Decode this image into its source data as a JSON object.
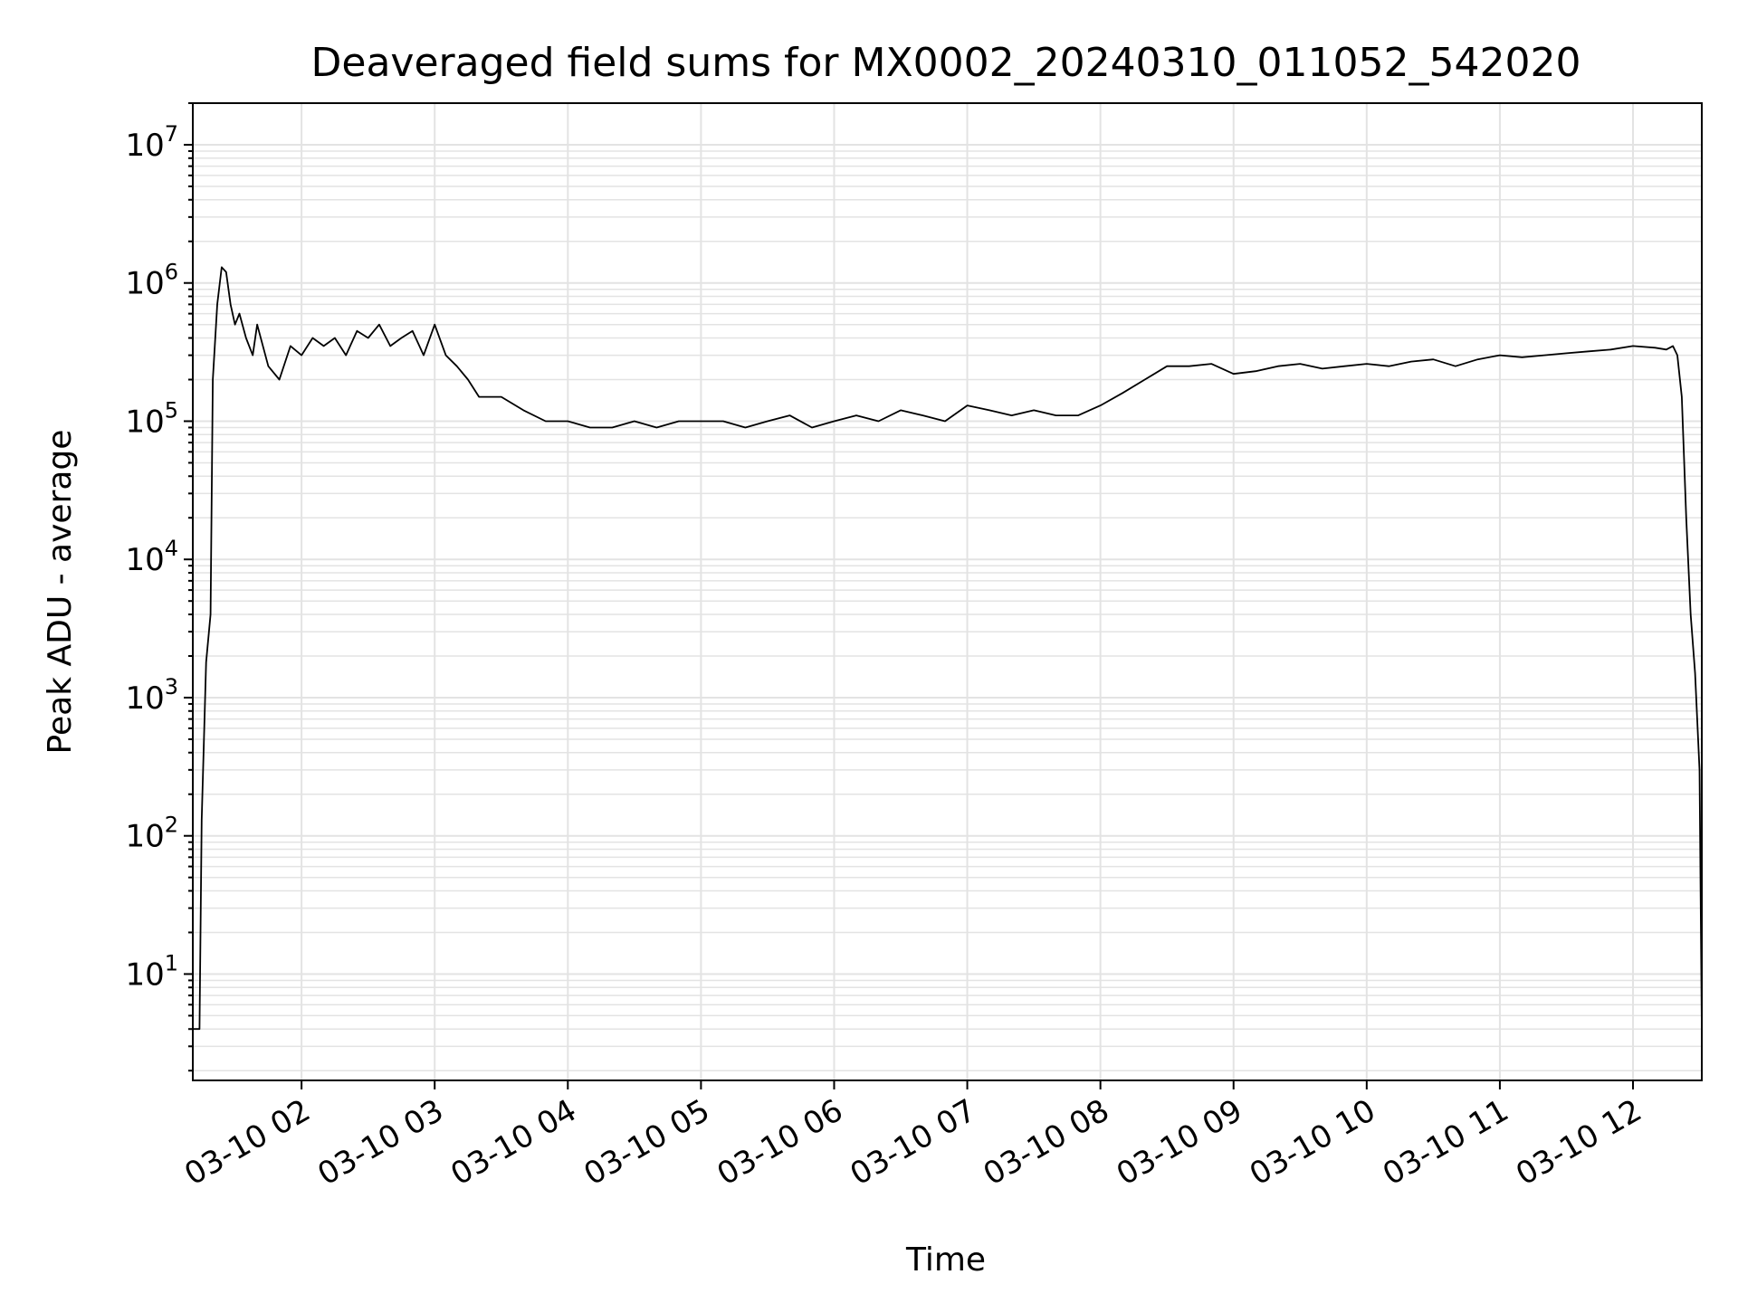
{
  "chart_data": {
    "type": "line",
    "title": "Deaveraged field sums for MX0002_20240310_011052_542020",
    "xlabel": "Time",
    "ylabel": "Peak ADU - average",
    "yscale": "log",
    "grid": true,
    "x_range": [
      "03-10 01:11",
      "03-10 12:31"
    ],
    "y_range": [
      1.7,
      20000000
    ],
    "x_ticks": [
      "03-10 02",
      "03-10 03",
      "03-10 04",
      "03-10 05",
      "03-10 06",
      "03-10 07",
      "03-10 08",
      "03-10 09",
      "03-10 10",
      "03-10 11",
      "03-10 12"
    ],
    "y_ticks": [
      {
        "base": "10",
        "exp": "1",
        "value": 10
      },
      {
        "base": "10",
        "exp": "2",
        "value": 100
      },
      {
        "base": "10",
        "exp": "3",
        "value": 1000
      },
      {
        "base": "10",
        "exp": "4",
        "value": 10000
      },
      {
        "base": "10",
        "exp": "5",
        "value": 100000
      },
      {
        "base": "10",
        "exp": "6",
        "value": 1000000
      },
      {
        "base": "10",
        "exp": "7",
        "value": 10000000
      }
    ],
    "line_color": "#000000",
    "series": [
      {
        "x": [
          "03-10 01:11",
          "03-10 01:13",
          "03-10 01:14",
          "03-10 01:15",
          "03-10 01:17",
          "03-10 01:19",
          "03-10 01:20",
          "03-10 01:22",
          "03-10 01:24",
          "03-10 01:26",
          "03-10 01:28",
          "03-10 01:30",
          "03-10 01:32",
          "03-10 01:35",
          "03-10 01:38",
          "03-10 01:40",
          "03-10 01:45",
          "03-10 01:50",
          "03-10 01:55",
          "03-10 02:00",
          "03-10 02:05",
          "03-10 02:10",
          "03-10 02:15",
          "03-10 02:20",
          "03-10 02:25",
          "03-10 02:30",
          "03-10 02:35",
          "03-10 02:40",
          "03-10 02:45",
          "03-10 02:50",
          "03-10 02:55",
          "03-10 03:00",
          "03-10 03:05",
          "03-10 03:10",
          "03-10 03:15",
          "03-10 03:20",
          "03-10 03:30",
          "03-10 03:40",
          "03-10 03:50",
          "03-10 04:00",
          "03-10 04:10",
          "03-10 04:20",
          "03-10 04:30",
          "03-10 04:40",
          "03-10 04:50",
          "03-10 05:00",
          "03-10 05:10",
          "03-10 05:20",
          "03-10 05:30",
          "03-10 05:40",
          "03-10 05:50",
          "03-10 06:00",
          "03-10 06:10",
          "03-10 06:20",
          "03-10 06:30",
          "03-10 06:40",
          "03-10 06:50",
          "03-10 07:00",
          "03-10 07:10",
          "03-10 07:20",
          "03-10 07:30",
          "03-10 07:40",
          "03-10 07:50",
          "03-10 08:00",
          "03-10 08:10",
          "03-10 08:20",
          "03-10 08:30",
          "03-10 08:40",
          "03-10 08:50",
          "03-10 09:00",
          "03-10 09:10",
          "03-10 09:20",
          "03-10 09:30",
          "03-10 09:40",
          "03-10 09:50",
          "03-10 10:00",
          "03-10 10:10",
          "03-10 10:20",
          "03-10 10:30",
          "03-10 10:40",
          "03-10 10:50",
          "03-10 11:00",
          "03-10 11:10",
          "03-10 11:20",
          "03-10 11:30",
          "03-10 11:40",
          "03-10 11:50",
          "03-10 12:00",
          "03-10 12:10",
          "03-10 12:15",
          "03-10 12:18",
          "03-10 12:20",
          "03-10 12:22",
          "03-10 12:24",
          "03-10 12:26",
          "03-10 12:28",
          "03-10 12:30",
          "03-10 12:31"
        ],
        "y": [
          4,
          4,
          4,
          130,
          1800,
          4000,
          200000,
          700000,
          1300000,
          1200000,
          700000,
          500000,
          600000,
          400000,
          300000,
          500000,
          250000,
          200000,
          350000,
          300000,
          400000,
          350000,
          400000,
          300000,
          450000,
          400000,
          500000,
          350000,
          400000,
          450000,
          300000,
          500000,
          300000,
          250000,
          200000,
          150000,
          150000,
          120000,
          100000,
          100000,
          90000,
          90000,
          100000,
          90000,
          100000,
          100000,
          100000,
          90000,
          100000,
          110000,
          90000,
          100000,
          110000,
          100000,
          120000,
          110000,
          100000,
          130000,
          120000,
          110000,
          120000,
          110000,
          110000,
          130000,
          160000,
          200000,
          250000,
          250000,
          260000,
          220000,
          230000,
          250000,
          260000,
          240000,
          250000,
          260000,
          250000,
          270000,
          280000,
          250000,
          280000,
          300000,
          290000,
          300000,
          310000,
          320000,
          330000,
          350000,
          340000,
          330000,
          350000,
          300000,
          150000,
          20000,
          4000,
          1500,
          300,
          4
        ]
      }
    ]
  }
}
